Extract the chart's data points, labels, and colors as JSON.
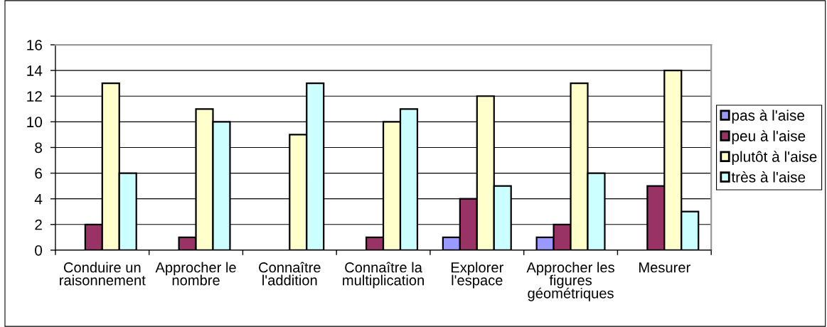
{
  "chart_data": {
    "type": "bar",
    "categories": [
      "Conduire un\nraisonnement",
      "Approcher le\nnombre",
      "Connaître\nl'addition",
      "Connaître la\nmultiplication",
      "Explorer\nl'espace",
      "Approcher les\nfigures\ngéométriques",
      "Mesurer"
    ],
    "series": [
      {
        "name": "pas à l'aise",
        "color": "#9999ff",
        "values": [
          null,
          null,
          null,
          null,
          1,
          1,
          null
        ]
      },
      {
        "name": "peu à l'aise",
        "color": "#993366",
        "values": [
          2,
          1,
          null,
          1,
          4,
          2,
          5
        ]
      },
      {
        "name": "plutôt à l'aise",
        "color": "#ffffcc",
        "values": [
          13,
          11,
          9,
          10,
          12,
          13,
          14
        ]
      },
      {
        "name": "très à l'aise",
        "color": "#ccffff",
        "values": [
          6,
          10,
          13,
          11,
          5,
          6,
          3
        ]
      }
    ],
    "ylim": [
      0,
      16
    ],
    "yticks": [
      0,
      2,
      4,
      6,
      8,
      10,
      12,
      14,
      16
    ],
    "grid": "y",
    "legend": "right"
  }
}
